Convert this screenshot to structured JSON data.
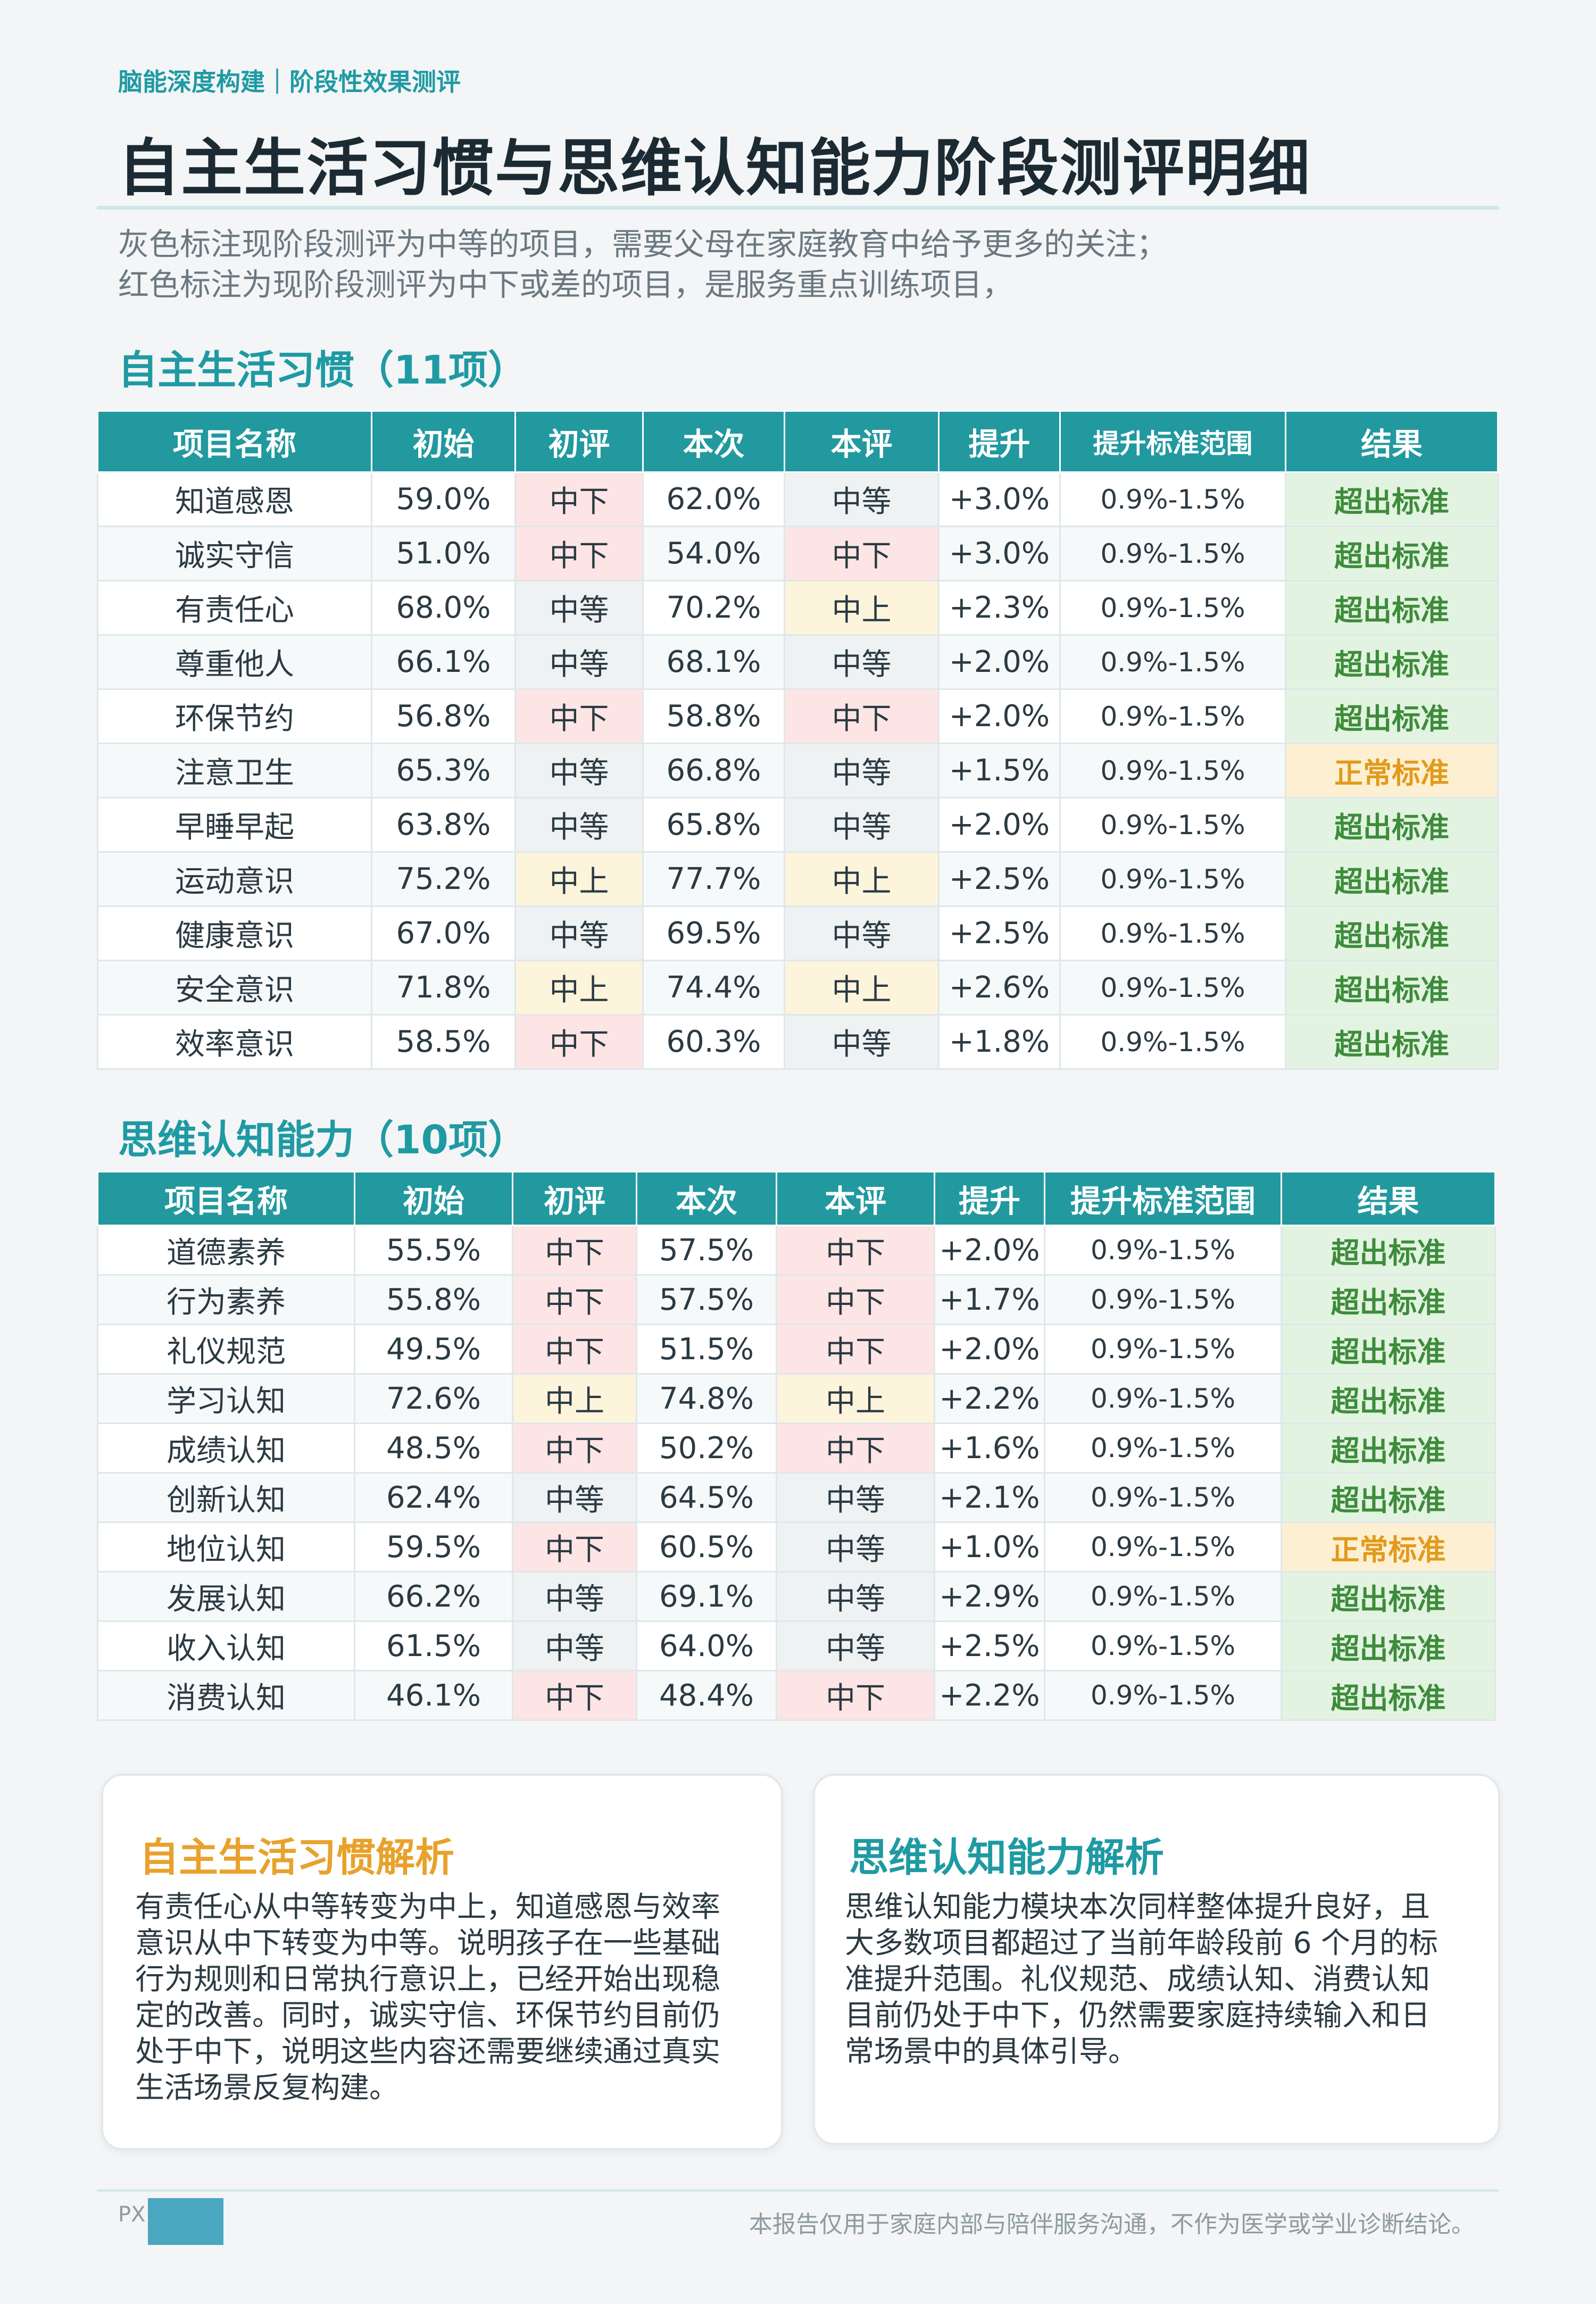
{
  "header": {
    "kicker": "脑能深度构建｜阶段性效果测评",
    "title": "自主生活习惯与思维认知能力阶段测评明细",
    "intro_line1": "灰色标注现阶段测评为中等的项目，需要父母在家庭教育中给予更多的关注；",
    "intro_line2": "红色标注为现阶段测评为中下或差的项目，是服务重点训练项目，"
  },
  "colors": {
    "teal": "#21999f",
    "level_mid": "#eef2f3",
    "level_low": "#fde5e5",
    "level_up": "#fdf4dc",
    "result_exceed": "#3d8c3b",
    "result_normal": "#e29a1b"
  },
  "columns": [
    "项目名称",
    "初始",
    "初评",
    "本次",
    "本评",
    "提升",
    "提升标准范围",
    "结果"
  ],
  "section1": {
    "title": "自主生活习惯（11项）",
    "rows": [
      [
        "知道感恩",
        "59.0%",
        "中下",
        "62.0%",
        "中等",
        "+3.0%",
        "0.9%-1.5%",
        "超出标准"
      ],
      [
        "诚实守信",
        "51.0%",
        "中下",
        "54.0%",
        "中下",
        "+3.0%",
        "0.9%-1.5%",
        "超出标准"
      ],
      [
        "有责任心",
        "68.0%",
        "中等",
        "70.2%",
        "中上",
        "+2.3%",
        "0.9%-1.5%",
        "超出标准"
      ],
      [
        "尊重他人",
        "66.1%",
        "中等",
        "68.1%",
        "中等",
        "+2.0%",
        "0.9%-1.5%",
        "超出标准"
      ],
      [
        "环保节约",
        "56.8%",
        "中下",
        "58.8%",
        "中下",
        "+2.0%",
        "0.9%-1.5%",
        "超出标准"
      ],
      [
        "注意卫生",
        "65.3%",
        "中等",
        "66.8%",
        "中等",
        "+1.5%",
        "0.9%-1.5%",
        "正常标准"
      ],
      [
        "早睡早起",
        "63.8%",
        "中等",
        "65.8%",
        "中等",
        "+2.0%",
        "0.9%-1.5%",
        "超出标准"
      ],
      [
        "运动意识",
        "75.2%",
        "中上",
        "77.7%",
        "中上",
        "+2.5%",
        "0.9%-1.5%",
        "超出标准"
      ],
      [
        "健康意识",
        "67.0%",
        "中等",
        "69.5%",
        "中等",
        "+2.5%",
        "0.9%-1.5%",
        "超出标准"
      ],
      [
        "安全意识",
        "71.8%",
        "中上",
        "74.4%",
        "中上",
        "+2.6%",
        "0.9%-1.5%",
        "超出标准"
      ],
      [
        "效率意识",
        "58.5%",
        "中下",
        "60.3%",
        "中等",
        "+1.8%",
        "0.9%-1.5%",
        "超出标准"
      ]
    ]
  },
  "section2": {
    "title": "思维认知能力（10项）",
    "rows": [
      [
        "道德素养",
        "55.5%",
        "中下",
        "57.5%",
        "中下",
        "+2.0%",
        "0.9%-1.5%",
        "超出标准"
      ],
      [
        "行为素养",
        "55.8%",
        "中下",
        "57.5%",
        "中下",
        "+1.7%",
        "0.9%-1.5%",
        "超出标准"
      ],
      [
        "礼仪规范",
        "49.5%",
        "中下",
        "51.5%",
        "中下",
        "+2.0%",
        "0.9%-1.5%",
        "超出标准"
      ],
      [
        "学习认知",
        "72.6%",
        "中上",
        "74.8%",
        "中上",
        "+2.2%",
        "0.9%-1.5%",
        "超出标准"
      ],
      [
        "成绩认知",
        "48.5%",
        "中下",
        "50.2%",
        "中下",
        "+1.6%",
        "0.9%-1.5%",
        "超出标准"
      ],
      [
        "创新认知",
        "62.4%",
        "中等",
        "64.5%",
        "中等",
        "+2.1%",
        "0.9%-1.5%",
        "超出标准"
      ],
      [
        "地位认知",
        "59.5%",
        "中下",
        "60.5%",
        "中等",
        "+1.0%",
        "0.9%-1.5%",
        "正常标准"
      ],
      [
        "发展认知",
        "66.2%",
        "中等",
        "69.1%",
        "中等",
        "+2.9%",
        "0.9%-1.5%",
        "超出标准"
      ],
      [
        "收入认知",
        "61.5%",
        "中等",
        "64.0%",
        "中等",
        "+2.5%",
        "0.9%-1.5%",
        "超出标准"
      ],
      [
        "消费认知",
        "46.1%",
        "中下",
        "48.4%",
        "中下",
        "+2.2%",
        "0.9%-1.5%",
        "超出标准"
      ]
    ]
  },
  "analysis": {
    "habits": {
      "title": "自主生活习惯解析",
      "lines": [
        "有责任心从中等转变为中上，知道感恩与效率",
        "意识从中下转变为中等。说明孩子在一些基础",
        "行为规则和日常执行意识上，已经开始出现稳",
        "定的改善。同时，诚实守信、环保节约目前仍",
        "处于中下，说明这些内容还需要继续通过真实",
        "生活场景反复构建。"
      ]
    },
    "cognition": {
      "title": "思维认知能力解析",
      "lines": [
        "思维认知能力模块本次同样整体提升良好，且",
        "大多数项目都超过了当前年龄段前 6 个月的标",
        "准提升范围。礼仪规范、成绩认知、消费认知",
        "目前仍处于中下，仍然需要家庭持续输入和日",
        "常场景中的具体引导。"
      ]
    }
  },
  "footer": {
    "page_label": "PX",
    "disclaimer": "本报告仅用于家庭内部与陪伴服务沟通，不作为医学或学业诊断结论。"
  }
}
